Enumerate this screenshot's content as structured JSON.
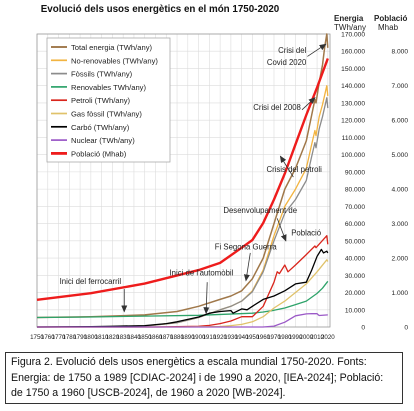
{
  "chart_data": {
    "type": "line",
    "title": "Evolució dels usos energètics en el món 1750-2020",
    "y_left_label_1": "Energia",
    "y_left_label_2": "TWh/any",
    "y_right_label_1": "Població",
    "y_right_label_2": "Mhab",
    "xlim": [
      1750,
      2022
    ],
    "ylim_left": [
      0,
      170000
    ],
    "ylim_right": [
      0,
      8500
    ],
    "x_ticks": [
      "1750",
      "1760",
      "1770",
      "1780",
      "1790",
      "1800",
      "1810",
      "1820",
      "1830",
      "1840",
      "1850",
      "1860",
      "1870",
      "1880",
      "1890",
      "1900",
      "1910",
      "1920",
      "1930",
      "1940",
      "1950",
      "1960",
      "1970",
      "1980",
      "1990",
      "2000",
      "2010",
      "2020"
    ],
    "y_left_ticks": [
      "0",
      "10.000",
      "20.000",
      "30.000",
      "40.000",
      "50.000",
      "60.000",
      "70.000",
      "80.000",
      "90.000",
      "100.000",
      "110.000",
      "120.000",
      "130.000",
      "140.000",
      "150.000",
      "160.000",
      "170.000"
    ],
    "y_right_ticks": [
      "0",
      "1.000",
      "2.000",
      "3.000",
      "4.000",
      "5.000",
      "6.000",
      "7.000",
      "8.000"
    ],
    "grid": true,
    "legend_position": "top-left",
    "series": [
      {
        "name": "Total energia (TWh/any)",
        "color": "#a0784a",
        "width": 1.5,
        "axis": "left",
        "x": [
          1750,
          1800,
          1850,
          1880,
          1900,
          1920,
          1930,
          1940,
          1950,
          1960,
          1970,
          1980,
          1990,
          2000,
          2005,
          2008,
          2009,
          2012,
          2015,
          2017,
          2019,
          2020
        ],
        "y": [
          5500,
          6000,
          7000,
          9000,
          12000,
          16000,
          18000,
          21000,
          28000,
          40000,
          60000,
          80000,
          92000,
          108000,
          123000,
          132000,
          130000,
          142000,
          152000,
          162000,
          170000,
          162000
        ]
      },
      {
        "name": "No-renovables (TWh/any)",
        "color": "#f2b441",
        "width": 1.3,
        "axis": "left",
        "x": [
          1750,
          1800,
          1850,
          1880,
          1900,
          1920,
          1930,
          1940,
          1950,
          1960,
          1970,
          1980,
          1990,
          2000,
          2005,
          2008,
          2009,
          2012,
          2015,
          2019,
          2020
        ],
        "y": [
          0,
          30,
          500,
          2500,
          5500,
          10000,
          12000,
          15000,
          21000,
          33000,
          53000,
          70000,
          80000,
          92000,
          106000,
          114000,
          111000,
          122000,
          129000,
          140000,
          134000
        ]
      },
      {
        "name": "Fòssils (TWh/any)",
        "color": "#8c8c8c",
        "width": 1.3,
        "axis": "left",
        "x": [
          1750,
          1800,
          1850,
          1880,
          1900,
          1920,
          1930,
          1940,
          1950,
          1960,
          1970,
          1980,
          1990,
          2000,
          2005,
          2008,
          2009,
          2012,
          2015,
          2019,
          2020
        ],
        "y": [
          0,
          30,
          500,
          2500,
          5500,
          10000,
          12000,
          15000,
          20500,
          32000,
          50000,
          66000,
          74000,
          85000,
          99000,
          107000,
          104000,
          115000,
          122000,
          133000,
          127000
        ]
      },
      {
        "name": "Renovables TWh/any)",
        "color": "#2ea36a",
        "width": 1.3,
        "axis": "left",
        "x": [
          1750,
          1800,
          1850,
          1900,
          1950,
          1960,
          1970,
          1980,
          1990,
          2000,
          2010,
          2015,
          2020
        ],
        "y": [
          5500,
          5800,
          6300,
          6800,
          8000,
          8700,
          9700,
          11000,
          13000,
          15000,
          19500,
          22500,
          26500
        ]
      },
      {
        "name": "Petroli (TWh/any)",
        "color": "#d9251c",
        "width": 1.3,
        "axis": "left",
        "x": [
          1750,
          1860,
          1880,
          1900,
          1910,
          1920,
          1930,
          1940,
          1950,
          1960,
          1970,
          1973,
          1975,
          1980,
          1983,
          1990,
          2000,
          2008,
          2009,
          2019,
          2020
        ],
        "y": [
          0,
          0,
          200,
          400,
          900,
          2000,
          3500,
          6000,
          6000,
          12000,
          26000,
          32000,
          31000,
          36000,
          32000,
          36000,
          42000,
          47000,
          46000,
          53000,
          48000
        ]
      },
      {
        "name": "Gas fòssil (TWh/any)",
        "color": "#e0c26a",
        "width": 1.3,
        "axis": "left",
        "x": [
          1750,
          1880,
          1900,
          1920,
          1930,
          1940,
          1950,
          1960,
          1970,
          1980,
          1990,
          2000,
          2010,
          2019,
          2020
        ],
        "y": [
          0,
          10,
          100,
          300,
          800,
          1500,
          3000,
          6000,
          11000,
          15000,
          20000,
          25000,
          32000,
          39000,
          38000
        ]
      },
      {
        "name": "Carbó (TWh/any)",
        "color": "#000000",
        "width": 1.3,
        "axis": "left",
        "x": [
          1750,
          1800,
          1820,
          1850,
          1870,
          1880,
          1900,
          1910,
          1920,
          1930,
          1932,
          1940,
          1945,
          1950,
          1960,
          1970,
          1980,
          1990,
          2000,
          2005,
          2010,
          2014,
          2016,
          2019,
          2020
        ],
        "y": [
          0,
          200,
          400,
          800,
          2000,
          3000,
          5800,
          8000,
          9000,
          9500,
          8000,
          10500,
          10000,
          12000,
          16000,
          18000,
          21000,
          25000,
          26000,
          33000,
          41000,
          45000,
          43000,
          44000,
          43000
        ]
      },
      {
        "name": "Nuclear (TWh/any)",
        "color": "#9b59c7",
        "width": 1.3,
        "axis": "left",
        "x": [
          1750,
          1960,
          1970,
          1980,
          1990,
          2000,
          2005,
          2010,
          2011,
          2012,
          2020
        ],
        "y": [
          0,
          0,
          500,
          2800,
          6500,
          7600,
          7800,
          7700,
          7100,
          6700,
          7000
        ]
      },
      {
        "name": "Població (Mhab)",
        "color": "#ee1c1c",
        "width": 2.4,
        "axis": "right",
        "x": [
          1750,
          1800,
          1850,
          1900,
          1920,
          1940,
          1950,
          1960,
          1970,
          1980,
          1990,
          2000,
          2010,
          2020
        ],
        "y": [
          790,
          980,
          1260,
          1650,
          1860,
          2300,
          2525,
          3018,
          3700,
          4450,
          5300,
          6150,
          6950,
          7790
        ]
      }
    ],
    "annotations": [
      {
        "text": "Crisi del",
        "x": 2000,
        "y": 159000,
        "align": "end"
      },
      {
        "text": "Covid 2020",
        "x": 2000,
        "y": 152000,
        "align": "end"
      },
      {
        "text": "Crisi del 2008",
        "x": 1995,
        "y": 126000,
        "align": "end"
      },
      {
        "text": "Crisis del petroli",
        "x": 1963,
        "y": 90000,
        "align": "start"
      },
      {
        "text": "Desenvolupament de",
        "x": 1923,
        "y": 66000,
        "align": "start"
      },
      {
        "text": "Població",
        "x": 1986,
        "y": 53000,
        "align": "start"
      },
      {
        "text": "Fi Segona Guerra",
        "x": 1915,
        "y": 45000,
        "align": "start"
      },
      {
        "text": "Inici de l'automòbil",
        "x": 1873,
        "y": 30000,
        "align": "start"
      },
      {
        "text": "Inici del ferrocarril",
        "x": 1771,
        "y": 25000,
        "align": "start"
      }
    ],
    "arrows": [
      {
        "from": [
          2001,
          157000
        ],
        "to": [
          2018,
          164000
        ]
      },
      {
        "from": [
          1996,
          126000
        ],
        "to": [
          2008,
          133000
        ]
      },
      {
        "from": [
          1988,
          87000
        ],
        "to": [
          1976,
          99000
        ]
      },
      {
        "from": [
          1973,
          63000
        ],
        "to": [
          1981,
          50000
        ]
      },
      {
        "from": [
          1948,
          43000
        ],
        "to": [
          1944,
          27000
        ]
      },
      {
        "from": [
          1908,
          26000
        ],
        "to": [
          1907,
          8000
        ]
      },
      {
        "from": [
          1831,
          22000
        ],
        "to": [
          1831,
          9000
        ]
      }
    ]
  },
  "caption": "Figura 2. Evolució dels usos energètics a escala mundial 1750-2020. Fonts: Energia: de 1750 a 1989 [CDIAC-2024] i de 1990 a 2020, [IEA-2024]; Població: de 1750 a 1960 [USCB-2024], de 1960 a 2020 [WB-2024]."
}
